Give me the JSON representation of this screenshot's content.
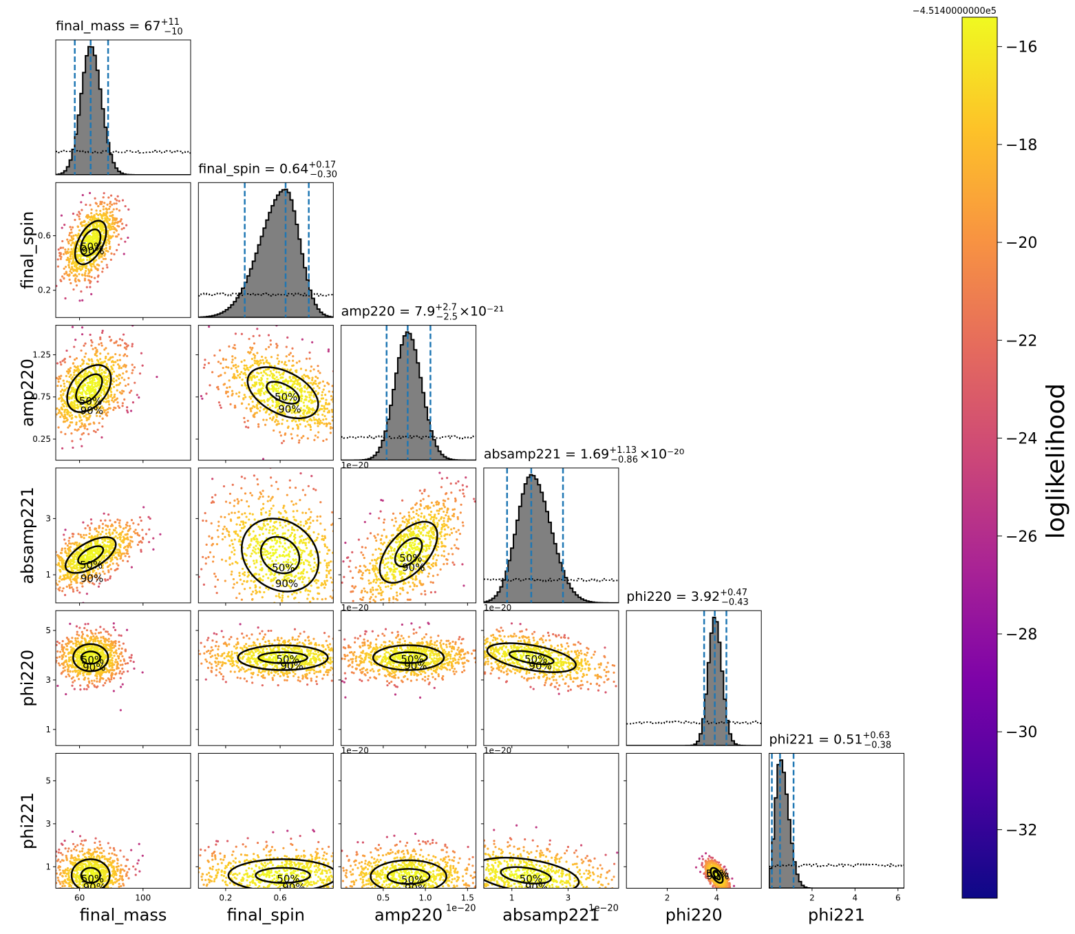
{
  "figure": {
    "colorbar": {
      "label": "loglikelihood",
      "offset_label": "−4.5140000000e5",
      "ticks": [
        "−16",
        "−18",
        "−20",
        "−22",
        "−24",
        "−26",
        "−28",
        "−30",
        "−32"
      ],
      "tick_values": [
        -16,
        -18,
        -20,
        -22,
        -24,
        -26,
        -28,
        -30,
        -32
      ],
      "range": [
        -33.4,
        -15.4
      ],
      "colormap": "plasma"
    }
  },
  "chart_data": {
    "type": "corner",
    "parameters": [
      {
        "name": "final_mass",
        "median": 67,
        "plus": 11,
        "minus": 10,
        "range": [
          45,
          130
        ],
        "title_main": "final_mass = 67",
        "title_sup": "+11",
        "title_sub": "−10",
        "title_tail": "",
        "ticks": [
          60,
          100
        ],
        "tick_labels": [
          "60",
          "100"
        ],
        "scale_label": ""
      },
      {
        "name": "final_spin",
        "median": 0.64,
        "plus": 0.17,
        "minus": 0.3,
        "range": [
          0.0,
          0.99
        ],
        "title_main": "final_spin = 0.64",
        "title_sup": "+0.17",
        "title_sub": "−0.30",
        "title_tail": "",
        "ticks": [
          0.2,
          0.6
        ],
        "tick_labels": [
          "0.2",
          "0.6"
        ],
        "scale_label": ""
      },
      {
        "name": "amp220",
        "median": 7.9,
        "plus": 2.7,
        "minus": 2.5,
        "range": [
          0.0,
          1.6
        ],
        "title_main": "amp220 = 7.9",
        "title_sup": "+2.7",
        "title_sub": "−2.5",
        "title_tail": "×10⁻²¹",
        "ticks": [
          0.25,
          0.75,
          1.25
        ],
        "tick_labels": [
          "0.25",
          "0.75",
          "1.25"
        ],
        "xticks": [
          0.5,
          1.0,
          1.5
        ],
        "xtick_labels": [
          "0.5",
          "1.0",
          "1.5"
        ],
        "scale_label": "1e−20"
      },
      {
        "name": "absamp221",
        "median": 1.69,
        "plus": 1.13,
        "minus": 0.86,
        "range": [
          0.0,
          4.8
        ],
        "title_main": "absamp221 = 1.69",
        "title_sup": "+1.13",
        "title_sub": "−0.86",
        "title_tail": "×10⁻²⁰",
        "ticks": [
          1,
          3
        ],
        "tick_labels": [
          "1",
          "3"
        ],
        "scale_label": "1e−20"
      },
      {
        "name": "phi220",
        "median": 3.92,
        "plus": 0.47,
        "minus": 0.43,
        "range": [
          0.35,
          5.8
        ],
        "title_main": "phi220 = 3.92",
        "title_sup": "+0.47",
        "title_sub": "−0.43",
        "title_tail": "",
        "ticks": [
          1,
          3,
          5
        ],
        "tick_labels": [
          "1",
          "3",
          "5"
        ],
        "xticks": [
          2,
          4
        ],
        "xtick_labels": [
          "2",
          "4"
        ],
        "scale_label": ""
      },
      {
        "name": "phi221",
        "median": 0.51,
        "plus": 0.63,
        "minus": 0.38,
        "range": [
          0.0,
          6.28
        ],
        "title_main": "phi221 = 0.51",
        "title_sup": "+0.63",
        "title_sub": "−0.38",
        "title_tail": "",
        "ticks": [
          1,
          3,
          5
        ],
        "tick_labels": [
          "1",
          "3",
          "5"
        ],
        "xticks": [
          2,
          4,
          6
        ],
        "xtick_labels": [
          "2",
          "4",
          "6"
        ],
        "scale_label": ""
      }
    ],
    "contour_labels": [
      "50%",
      "90%"
    ],
    "contours": [
      {
        "pair": [
          1,
          0
        ],
        "center": [
          67,
          0.55
        ],
        "angle": -62,
        "r50": [
          9,
          0.06
        ],
        "r90": [
          15,
          0.09
        ]
      },
      {
        "pair": [
          2,
          0
        ],
        "center": [
          66,
          0.85
        ],
        "angle": 40,
        "r50": [
          6,
          0.2
        ],
        "r90": [
          11,
          0.32
        ]
      },
      {
        "pair": [
          2,
          1
        ],
        "center": [
          0.62,
          0.8
        ],
        "angle": 27,
        "r50": [
          0.13,
          0.1
        ],
        "r90": [
          0.28,
          0.25
        ]
      },
      {
        "pair": [
          3,
          0
        ],
        "center": [
          67,
          1.7
        ],
        "angle": 60,
        "r50": [
          4,
          0.5
        ],
        "r90": [
          8,
          1.0
        ]
      },
      {
        "pair": [
          3,
          1
        ],
        "center": [
          0.6,
          1.7
        ],
        "angle": 37,
        "r50": [
          0.15,
          0.6
        ],
        "r90": [
          0.3,
          1.2
        ]
      },
      {
        "pair": [
          3,
          2
        ],
        "center": [
          0.8,
          1.8
        ],
        "angle": -48,
        "r50": [
          0.2,
          0.35
        ],
        "r90": [
          0.44,
          0.7
        ]
      },
      {
        "pair": [
          4,
          0
        ],
        "center": [
          67,
          3.9
        ],
        "angle": 0,
        "r50": [
          6,
          0.25
        ],
        "r90": [
          11,
          0.55
        ]
      },
      {
        "pair": [
          4,
          1
        ],
        "center": [
          0.62,
          3.9
        ],
        "angle": 0,
        "r50": [
          0.18,
          0.22
        ],
        "r90": [
          0.33,
          0.5
        ]
      },
      {
        "pair": [
          4,
          2
        ],
        "center": [
          0.8,
          3.9
        ],
        "angle": 0,
        "r50": [
          0.22,
          0.22
        ],
        "r90": [
          0.42,
          0.5
        ]
      },
      {
        "pair": [
          4,
          3
        ],
        "center": [
          1.7,
          3.9
        ],
        "angle": 10,
        "r50": [
          0.8,
          0.22
        ],
        "r90": [
          1.6,
          0.5
        ]
      },
      {
        "pair": [
          5,
          0
        ],
        "center": [
          67,
          0.6
        ],
        "angle": 0,
        "r50": [
          6,
          0.35
        ],
        "r90": [
          12,
          0.75
        ]
      },
      {
        "pair": [
          5,
          1
        ],
        "center": [
          0.62,
          0.6
        ],
        "angle": 0,
        "r50": [
          0.2,
          0.35
        ],
        "r90": [
          0.4,
          0.75
        ]
      },
      {
        "pair": [
          5,
          2
        ],
        "center": [
          0.8,
          0.55
        ],
        "angle": 0,
        "r50": [
          0.25,
          0.35
        ],
        "r90": [
          0.45,
          0.75
        ]
      },
      {
        "pair": [
          5,
          3
        ],
        "center": [
          1.5,
          0.6
        ],
        "angle": 8,
        "r50": [
          0.9,
          0.35
        ],
        "r90": [
          1.9,
          0.75
        ]
      },
      {
        "pair": [
          5,
          4
        ],
        "center": [
          4.0,
          0.6
        ],
        "angle": 55,
        "r50": [
          0.2,
          0.1
        ],
        "r90": [
          0.35,
          0.2
        ]
      }
    ]
  }
}
